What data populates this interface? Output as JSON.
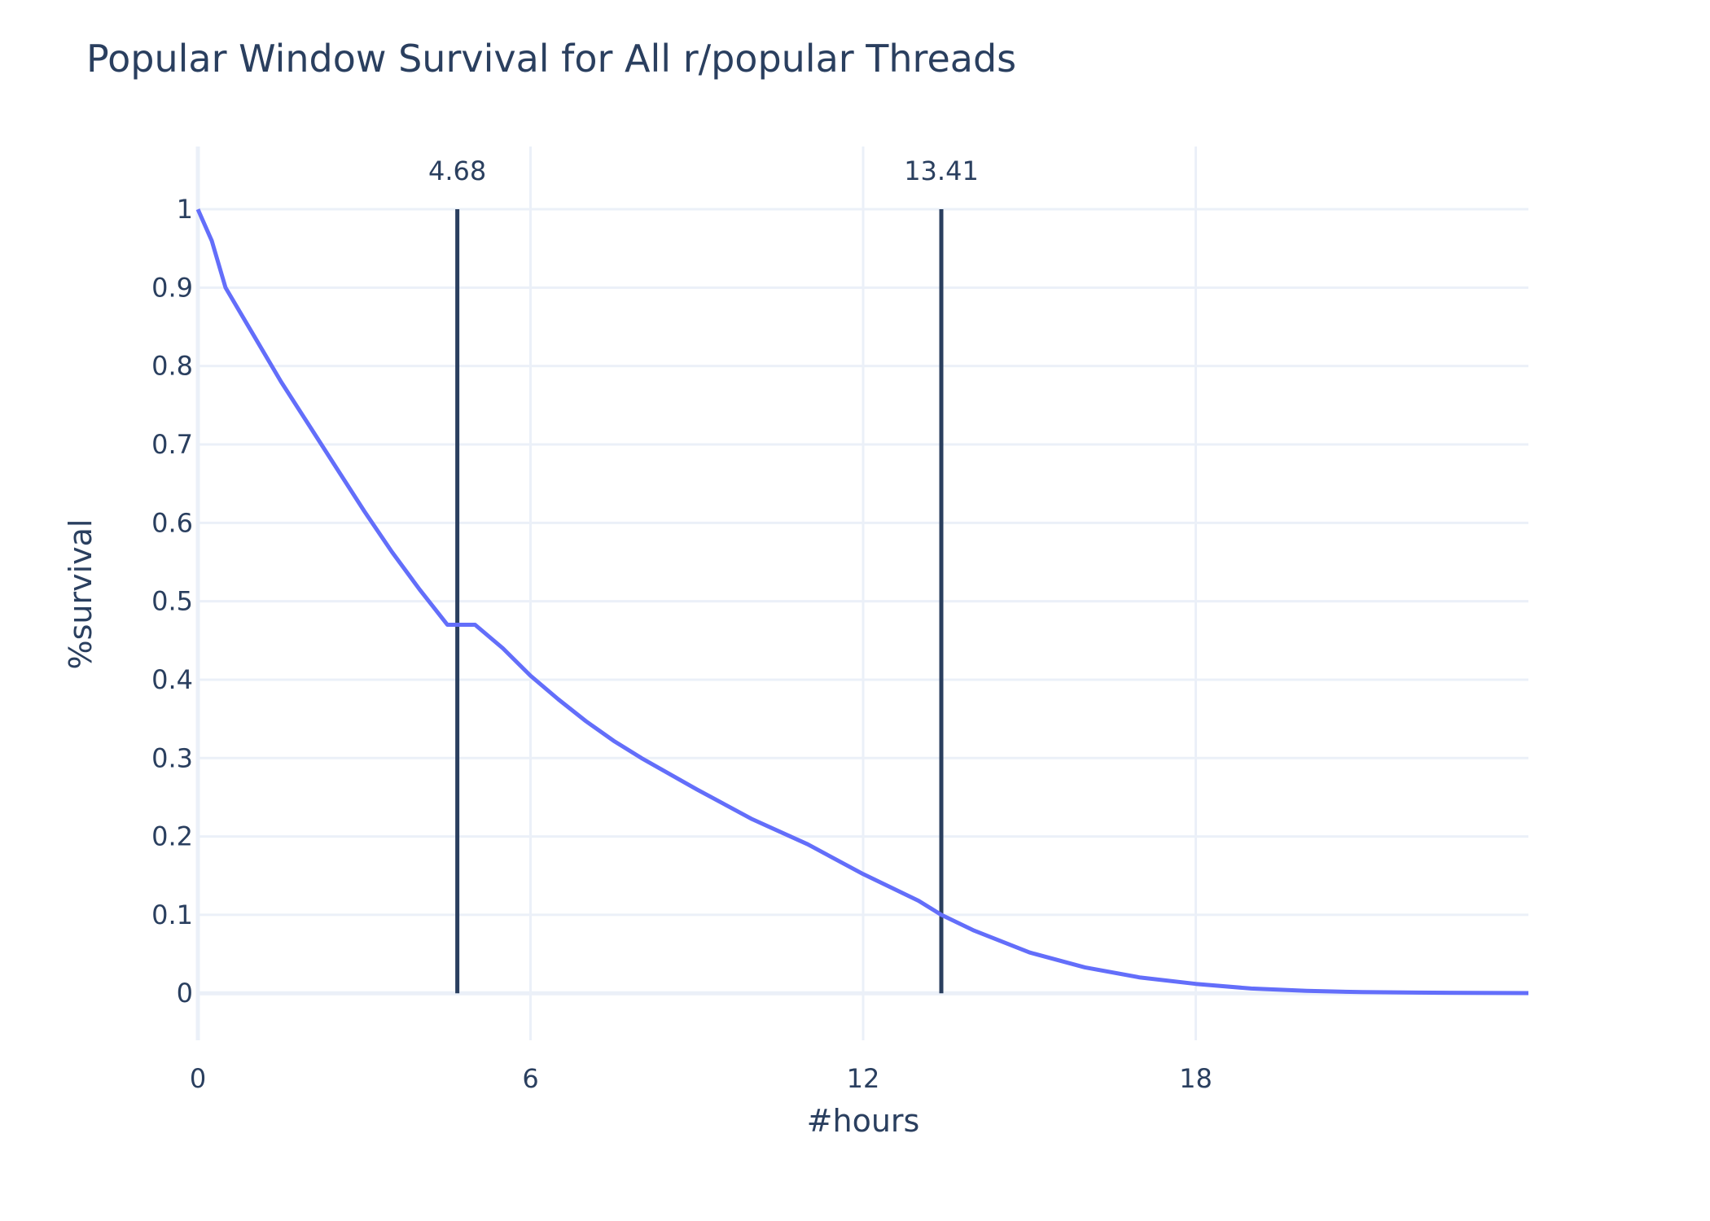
{
  "chart_data": {
    "type": "line",
    "title": "Popular Window Survival for All r/popular Threads",
    "xlabel": "#hours",
    "ylabel": "%survival",
    "xlim": [
      0,
      24
    ],
    "ylim": [
      -0.06,
      1.08
    ],
    "xticks": [
      0,
      6,
      12,
      18
    ],
    "xtick_labels": [
      "0",
      "6",
      "12",
      "18"
    ],
    "yticks": [
      0,
      0.1,
      0.2,
      0.3,
      0.4,
      0.5,
      0.6,
      0.7,
      0.8,
      0.9,
      1
    ],
    "ytick_labels": [
      "0",
      "0.1",
      "0.2",
      "0.3",
      "0.4",
      "0.5",
      "0.6",
      "0.7",
      "0.8",
      "0.9",
      "1"
    ],
    "grid": true,
    "series": [
      {
        "color": "#636efa",
        "x": [
          0,
          0.25,
          0.5,
          1,
          1.5,
          2,
          2.5,
          3,
          3.5,
          4,
          4.5,
          4.68,
          5,
          5.5,
          6,
          6.5,
          7,
          7.5,
          8,
          9,
          10,
          11,
          12,
          13,
          13.41,
          14,
          15,
          16,
          17,
          18,
          19,
          20,
          21,
          22,
          23,
          24
        ],
        "y": [
          1.0,
          0.96,
          0.9,
          0.84,
          0.78,
          0.725,
          0.67,
          0.615,
          0.563,
          0.515,
          0.47,
          0.5,
          0.47,
          0.44,
          0.405,
          0.375,
          0.347,
          0.322,
          0.3,
          0.26,
          0.222,
          0.19,
          0.152,
          0.118,
          0.1,
          0.08,
          0.052,
          0.033,
          0.02,
          0.012,
          0.006,
          0.003,
          0.0015,
          0.0008,
          0.0004,
          0.0002
        ]
      }
    ],
    "vlines": [
      {
        "x": 4.68,
        "label": "4.68",
        "y_from": 0,
        "y_to": 1,
        "color": "#2a3f5f"
      },
      {
        "x": 13.41,
        "label": "13.41",
        "y_from": 0,
        "y_to": 1,
        "color": "#2a3f5f"
      }
    ]
  }
}
